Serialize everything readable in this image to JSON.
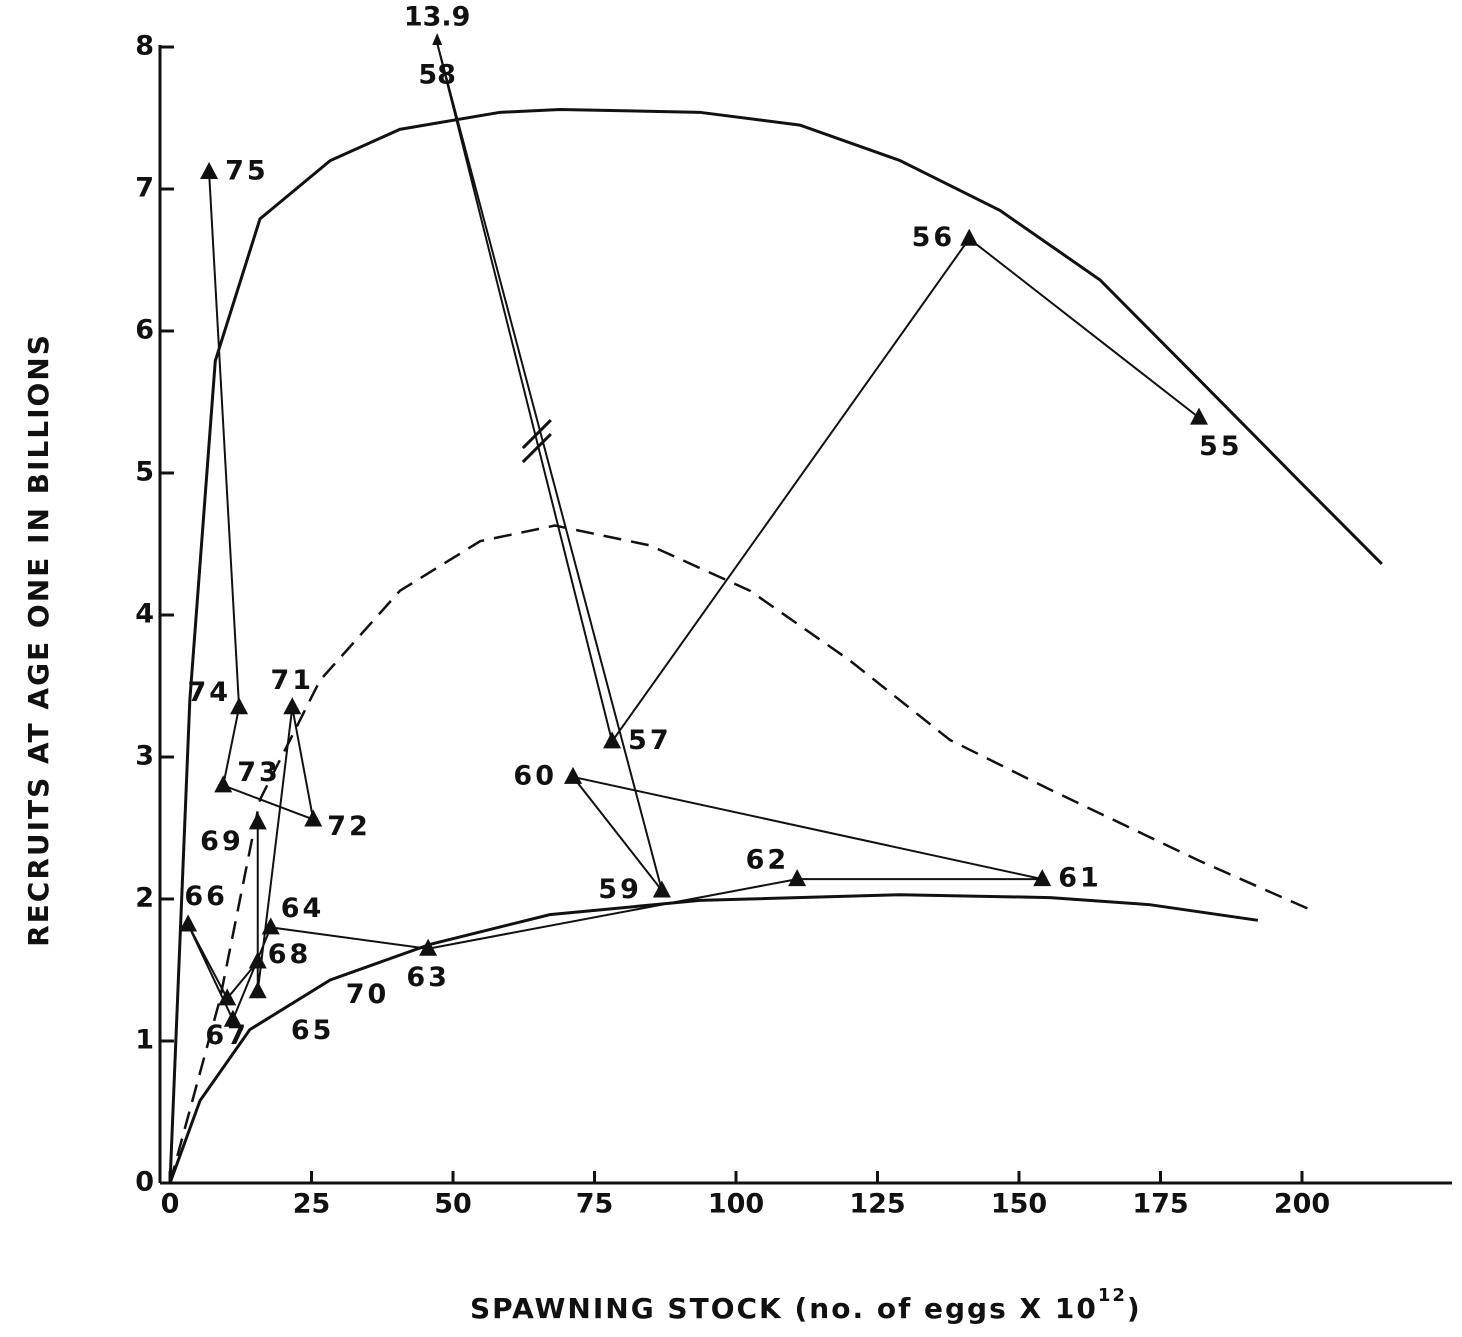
{
  "chart_data": {
    "type": "line",
    "x_label": {
      "text": "SPAWNING STOCK (no. of eggs X 10",
      "superscript": "12",
      "suffix": ")"
    },
    "y_label": "RECRUITS AT AGE ONE IN BILLIONS",
    "point_labels": [
      "55",
      "56",
      "57",
      "58",
      "59",
      "60",
      "61",
      "62",
      "63",
      "64",
      "65",
      "66",
      "67",
      "68",
      "69",
      "70",
      "71",
      "72",
      "73",
      "74",
      "75"
    ],
    "x": [
      181.8,
      141.2,
      78.1,
      47.2,
      86.9,
      71.2,
      154.1,
      110.8,
      45.6,
      17.8,
      11.1,
      3.2,
      10.1,
      15.5,
      15.5,
      15.5,
      21.6,
      25.3,
      9.4,
      12.2,
      6.9
    ],
    "values": [
      5.39,
      6.65,
      3.11,
      13.9,
      2.06,
      2.86,
      2.14,
      2.14,
      1.65,
      1.8,
      1.15,
      1.82,
      1.3,
      1.56,
      2.54,
      1.35,
      3.35,
      2.56,
      2.8,
      3.35,
      7.12
    ],
    "color": "#111111",
    "curves": [
      {
        "dashed": false,
        "x": [
          0,
          3.5,
          8,
          15.9,
          28.3,
          40.6,
          58.3,
          68.9,
          93.6,
          111.3,
          129,
          146.6,
          164.3,
          182,
          199.6,
          214.1
        ],
        "values": [
          0,
          3.4,
          5.79,
          6.79,
          7.2,
          7.42,
          7.54,
          7.56,
          7.54,
          7.45,
          7.2,
          6.85,
          6.36,
          5.65,
          4.94,
          4.36
        ]
      },
      {
        "dashed": true,
        "x": [
          0,
          8.8,
          15.9,
          26.5,
          40.6,
          54.8,
          68,
          84.8,
          102.5,
          120.1,
          137.8,
          155.5,
          181.8,
          202.3
        ],
        "values": [
          0,
          1.29,
          2.7,
          3.54,
          4.17,
          4.52,
          4.63,
          4.49,
          4.17,
          3.68,
          3.12,
          2.77,
          2.27,
          1.91
        ]
      },
      {
        "dashed": false,
        "x": [
          0,
          5.3,
          14.1,
          28.3,
          45.9,
          67.1,
          93.6,
          129,
          155.5,
          173.1,
          192.2
        ],
        "values": [
          0,
          0.58,
          1.08,
          1.43,
          1.68,
          1.89,
          1.99,
          2.03,
          2.01,
          1.96,
          1.85
        ]
      }
    ],
    "xlim": [
      -1.77,
      226.5
    ],
    "ylim": [
      0,
      8
    ],
    "xticks": [
      0,
      25,
      50,
      75,
      100,
      125,
      150,
      175,
      200
    ],
    "yticks": [
      0,
      1,
      2,
      3,
      4,
      5,
      6,
      7,
      8
    ]
  }
}
